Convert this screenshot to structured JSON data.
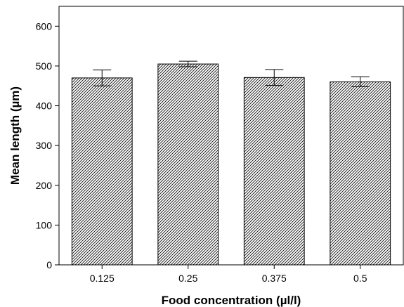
{
  "chart_data": {
    "type": "bar",
    "title": "",
    "xlabel": "Food concentration (µl/l)",
    "ylabel": "Mean length (µm)",
    "categories": [
      "0.125",
      "0.25",
      "0.375",
      "0.5"
    ],
    "values": [
      470,
      505,
      471,
      460
    ],
    "error_bars": [
      {
        "low": 450,
        "high": 490
      },
      {
        "low": 498,
        "high": 512
      },
      {
        "low": 451,
        "high": 491
      },
      {
        "low": 448,
        "high": 473
      }
    ],
    "ylim": [
      0,
      650
    ],
    "yticks": [
      0,
      100,
      200,
      300,
      400,
      500,
      600
    ],
    "grid": false,
    "bar_fill": "diagonal-hatch",
    "colors": {
      "bar_stroke": "#000000",
      "hatch": "#000000",
      "background": "#ffffff"
    }
  }
}
